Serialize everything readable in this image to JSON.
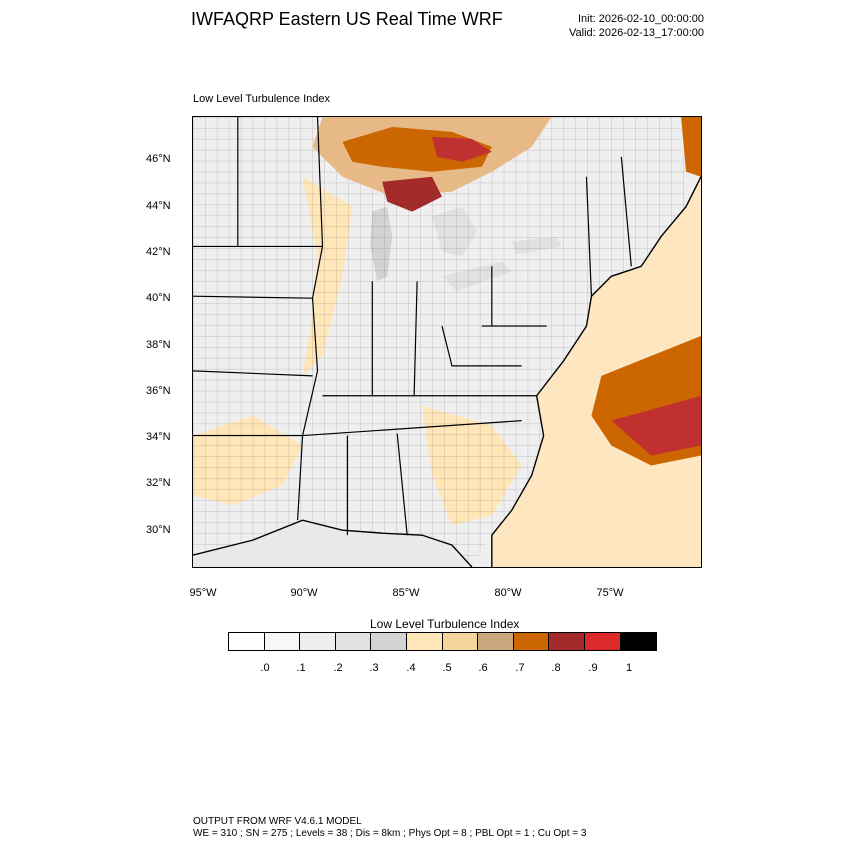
{
  "header": {
    "title": "IWFAQRP Eastern US Real Time WRF",
    "init": "Init: 2026-02-10_00:00:00",
    "valid": "Valid: 2026-02-13_17:00:00"
  },
  "panel": {
    "label": "Low Level Turbulence Index"
  },
  "map": {
    "lat_labels": [
      "46°N",
      "44°N",
      "42°N",
      "40°N",
      "38°N",
      "36°N",
      "34°N",
      "32°N",
      "30°N"
    ],
    "lon_labels": [
      "95°W",
      "90°W",
      "85°W",
      "80°W",
      "75°W"
    ],
    "ocean_color": "#fde6c0",
    "land_color": "#efefef",
    "hotspot_color": "#b22222"
  },
  "colorbar": {
    "title": "Low Level Turbulence Index",
    "colors": [
      "#ffffff",
      "#f7f7f7",
      "#eeeeee",
      "#e1e1e1",
      "#d3d3d3",
      "#ffe6b8",
      "#f7d49c",
      "#c9a87e",
      "#cc6600",
      "#a52a2a",
      "#dd2a2a",
      "#000000"
    ],
    "labels": [
      ".0",
      ".1",
      ".2",
      ".3",
      ".4",
      ".5",
      ".6",
      ".7",
      ".8",
      ".9",
      "1"
    ]
  },
  "footer": {
    "line1": "OUTPUT FROM WRF V4.6.1 MODEL",
    "line2": "WE = 310 ; SN = 275 ; Levels = 38 ; Dis = 8km ; Phys Opt = 8 ; PBL Opt = 1 ; Cu Opt = 3"
  }
}
